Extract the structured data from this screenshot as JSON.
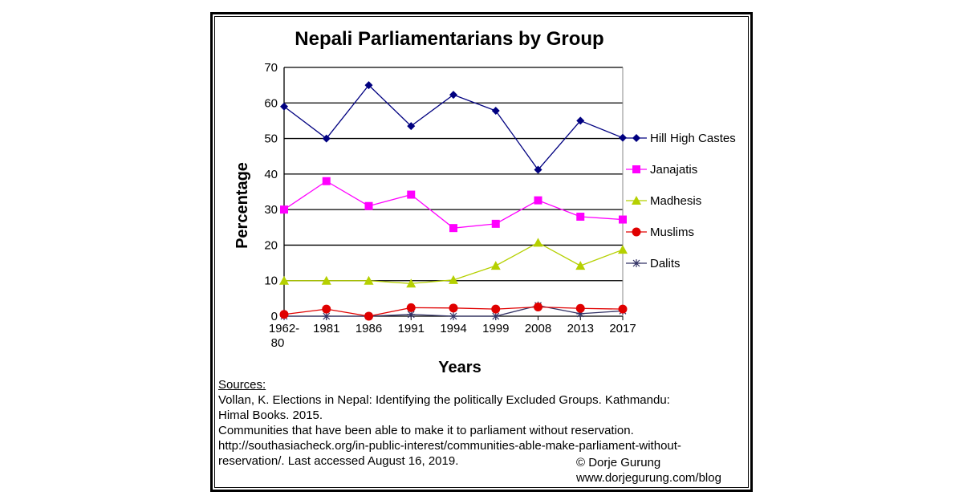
{
  "chart_data": {
    "type": "line",
    "title": "Nepali Parliamentarians by Group",
    "xlabel": "Years",
    "ylabel": "Percentage",
    "categories": [
      "1962-80",
      "1981",
      "1986",
      "1991",
      "1994",
      "1999",
      "2008",
      "2013",
      "2017"
    ],
    "ylim": [
      0,
      70
    ],
    "yticks": [
      0,
      10,
      20,
      30,
      40,
      50,
      60,
      70
    ],
    "grid": true,
    "legend_placement": "right",
    "series": [
      {
        "name": "Hill High Castes",
        "color": "#000080",
        "marker": "diamond",
        "values": [
          59,
          50,
          65,
          53.5,
          62.3,
          57.8,
          41.2,
          55,
          50.2
        ]
      },
      {
        "name": "Janajatis",
        "color": "#ff00ff",
        "marker": "square",
        "values": [
          30,
          38,
          31,
          34.2,
          24.8,
          26,
          32.6,
          28,
          27.2
        ]
      },
      {
        "name": "Madhesis",
        "color": "#b5d000",
        "marker": "triangle",
        "values": [
          10,
          10,
          10,
          9.2,
          10.2,
          14.2,
          20.7,
          14.2,
          18.7
        ]
      },
      {
        "name": "Muslims",
        "color": "#e00000",
        "marker": "circle",
        "values": [
          0.5,
          2,
          0,
          2.4,
          2.3,
          2,
          2.6,
          2.2,
          2
        ]
      },
      {
        "name": "Dalits",
        "color": "#333366",
        "marker": "asterisk",
        "values": [
          0,
          0,
          0,
          0.5,
          0,
          0,
          3,
          0.7,
          1.5
        ]
      }
    ]
  },
  "sources": {
    "heading": "Sources:",
    "line1": "Vollan, K.  Elections in Nepal: Identifying the politically Excluded Groups.  Kathmandu:",
    "line2": "Himal Books.  2015.",
    "line3": "Communities  that have been able to make it to parliament without reservation.",
    "line4": "http://southasiacheck.org/in-public-interest/communities-able-make-parliament-without-",
    "line5": "reservation/. Last accessed August 16, 2019."
  },
  "credit": {
    "author": "© Dorje Gurung",
    "site": "www.dorjegurung.com/blog"
  }
}
